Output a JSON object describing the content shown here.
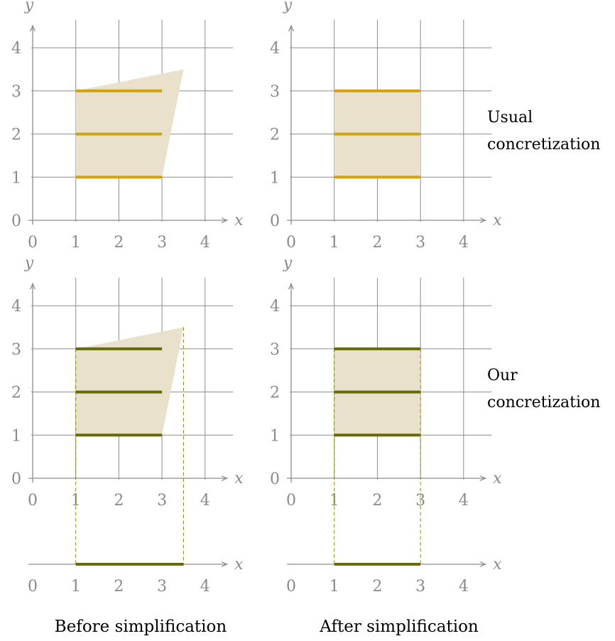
{
  "colors": {
    "grid": "#8c8c8c",
    "tick_text": "#8a8a8a",
    "region_fill": "#e9e1cb",
    "usual_segment": "#d6a20a",
    "our_segment": "#676b06",
    "dashed_projection": "#8a8a12"
  },
  "axis_names": {
    "x": "x",
    "y": "y"
  },
  "ticks": {
    "x": [
      "0",
      "1",
      "2",
      "3",
      "4"
    ],
    "y": [
      "0",
      "1",
      "2",
      "3",
      "4"
    ]
  },
  "row_labels": {
    "usual": [
      "Usual",
      "concretization"
    ],
    "ours": [
      "Our",
      "concretization"
    ]
  },
  "captions": {
    "before": "Before simplification",
    "after": "After simplification"
  },
  "panels": [
    {
      "id": "usual-before",
      "region": [
        [
          1,
          1
        ],
        [
          3,
          1
        ],
        [
          3.5,
          3.5
        ],
        [
          1,
          3
        ]
      ],
      "segments": [
        {
          "x": [
            1,
            3
          ],
          "y": 1
        },
        {
          "x": [
            1,
            3
          ],
          "y": 2
        },
        {
          "x": [
            1,
            3
          ],
          "y": 3
        }
      ],
      "segment_color": "usual_segment"
    },
    {
      "id": "usual-after",
      "region": [
        [
          1,
          1
        ],
        [
          3,
          1
        ],
        [
          3,
          3
        ],
        [
          1,
          3
        ]
      ],
      "segments": [
        {
          "x": [
            1,
            3
          ],
          "y": 1
        },
        {
          "x": [
            1,
            3
          ],
          "y": 2
        },
        {
          "x": [
            1,
            3
          ],
          "y": 3
        }
      ],
      "segment_color": "usual_segment"
    },
    {
      "id": "ours-before",
      "region": [
        [
          1,
          1
        ],
        [
          3,
          1
        ],
        [
          3.5,
          3.5
        ],
        [
          1,
          3
        ]
      ],
      "segments": [
        {
          "x": [
            1,
            3
          ],
          "y": 1
        },
        {
          "x": [
            1,
            3
          ],
          "y": 2
        },
        {
          "x": [
            1,
            3
          ],
          "y": 3
        }
      ],
      "segment_color": "our_segment",
      "projection": {
        "interval": [
          1,
          3.5
        ],
        "dash_from_y": [
          3,
          3.5
        ]
      }
    },
    {
      "id": "ours-after",
      "region": [
        [
          1,
          1
        ],
        [
          3,
          1
        ],
        [
          3,
          3
        ],
        [
          1,
          3
        ]
      ],
      "segments": [
        {
          "x": [
            1,
            3
          ],
          "y": 1
        },
        {
          "x": [
            1,
            3
          ],
          "y": 2
        },
        {
          "x": [
            1,
            3
          ],
          "y": 3
        }
      ],
      "segment_color": "our_segment",
      "projection": {
        "interval": [
          1,
          3
        ],
        "dash_from_y": [
          3,
          3
        ]
      }
    }
  ]
}
